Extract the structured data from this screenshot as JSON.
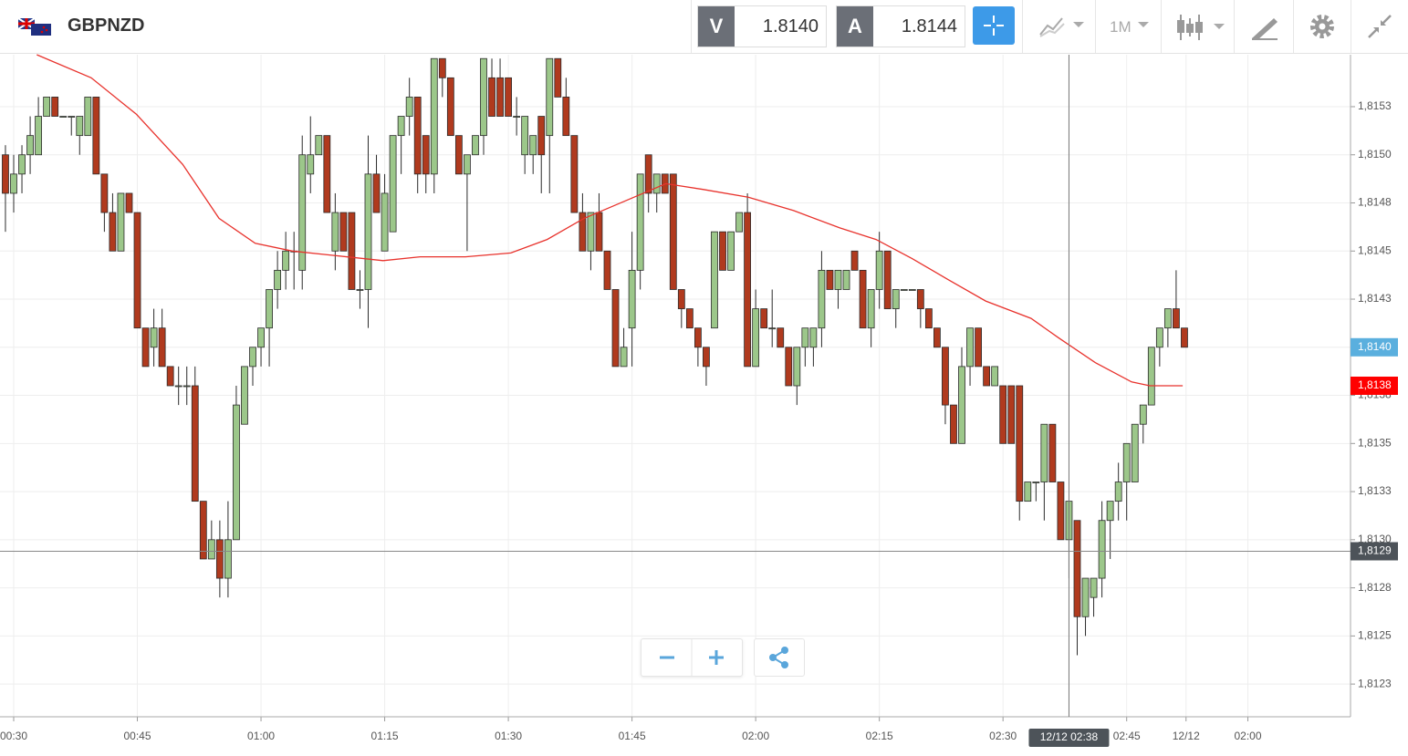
{
  "header": {
    "symbol": "GBPNZD",
    "sell_label": "V",
    "sell_price": "1.8140",
    "buy_label": "A",
    "buy_price": "1.8144",
    "timeframe": "1M"
  },
  "chart_data": {
    "type": "candlestick",
    "x": [
      -1,
      0,
      1,
      2,
      3,
      4,
      5,
      6,
      7,
      8,
      9,
      10,
      11,
      12,
      13,
      14,
      15,
      16,
      17,
      18,
      19,
      20,
      21,
      22,
      23,
      24,
      25,
      26,
      27,
      28,
      29,
      30,
      31,
      32,
      33,
      34,
      35,
      36,
      37,
      38,
      39,
      40,
      41,
      42,
      43,
      44,
      45,
      46,
      47,
      48,
      49,
      50,
      51,
      52,
      53,
      54,
      55,
      56,
      57,
      58,
      59,
      60,
      61,
      62,
      63,
      64,
      65,
      66,
      67,
      68,
      69,
      70,
      71,
      72,
      73,
      74,
      75,
      76,
      77,
      78,
      79,
      80,
      81,
      82,
      83,
      84,
      85,
      86,
      87,
      88,
      89,
      90,
      91,
      92,
      93,
      94,
      95,
      96,
      97,
      98,
      99,
      100,
      101,
      102,
      103,
      104,
      105,
      106,
      107,
      108,
      109,
      110,
      111,
      112,
      113,
      114,
      115,
      116,
      117,
      118,
      119,
      120,
      121,
      122,
      123,
      124,
      125,
      126,
      127,
      128,
      129,
      130,
      131,
      132,
      133,
      134,
      135,
      136,
      137,
      138,
      139,
      140,
      141,
      142
    ],
    "open": [
      1.815,
      1.8148,
      1.8149,
      1.815,
      1.815,
      1.8152,
      1.8153,
      1.8152,
      1.8152,
      1.8151,
      1.8151,
      1.8153,
      1.8149,
      1.8147,
      1.8145,
      1.8148,
      1.8147,
      1.8141,
      1.814,
      1.8141,
      1.8139,
      1.8138,
      1.8138,
      1.8138,
      1.8132,
      1.8129,
      1.813,
      1.8128,
      1.813,
      1.8136,
      1.8139,
      1.814,
      1.8141,
      1.8143,
      1.8144,
      1.8145,
      1.8144,
      1.8149,
      1.815,
      1.8151,
      1.8145,
      1.8147,
      1.8147,
      1.8143,
      1.8143,
      1.8149,
      1.8145,
      1.8146,
      1.8151,
      1.8152,
      1.8153,
      1.8151,
      1.8149,
      1.8155,
      1.8154,
      1.8151,
      1.8149,
      1.815,
      1.8151,
      1.8154,
      1.8154,
      1.8154,
      1.8152,
      1.815,
      1.815,
      1.8152,
      1.8151,
      1.8155,
      1.8153,
      1.8151,
      1.8147,
      1.8145,
      1.8147,
      1.8145,
      1.8143,
      1.8139,
      1.8141,
      1.8144,
      1.815,
      1.8148,
      1.8149,
      1.8149,
      1.8143,
      1.8142,
      1.8141,
      1.814,
      1.8141,
      1.8146,
      1.8144,
      1.8146,
      1.8147,
      1.8139,
      1.8142,
      1.8141,
      1.8141,
      1.814,
      1.8138,
      1.814,
      1.814,
      1.8141,
      1.8144,
      1.8143,
      1.8143,
      1.8145,
      1.8144,
      1.8141,
      1.8143,
      1.8145,
      1.8142,
      1.8143,
      1.8143,
      1.8143,
      1.8142,
      1.8141,
      1.814,
      1.8137,
      1.8135,
      1.8139,
      1.8141,
      1.8139,
      1.8138,
      1.8138,
      1.8138,
      1.8138,
      1.8132,
      1.8133,
      1.8133,
      1.8136,
      1.8133,
      1.813,
      1.8131,
      1.8126,
      1.8127,
      1.8128,
      1.8131,
      1.8132,
      1.8133,
      1.8133,
      1.8136,
      1.8137,
      1.814,
      1.8141,
      1.8142,
      1.8141
    ],
    "high": [
      1.81505,
      1.815,
      1.81505,
      1.8152,
      1.8153,
      1.8153,
      1.8153,
      1.8152,
      1.8152,
      1.8152,
      1.8153,
      1.8153,
      1.8149,
      1.8148,
      1.8148,
      1.8148,
      1.8147,
      1.8141,
      1.8142,
      1.8142,
      1.8139,
      1.8139,
      1.8139,
      1.8139,
      1.8132,
      1.8131,
      1.8131,
      1.8132,
      1.8138,
      1.8139,
      1.814,
      1.8141,
      1.8143,
      1.8145,
      1.8146,
      1.8146,
      1.8151,
      1.8152,
      1.8151,
      1.8151,
      1.8148,
      1.8147,
      1.8147,
      1.8144,
      1.8151,
      1.815,
      1.8149,
      1.8151,
      1.8152,
      1.8154,
      1.8153,
      1.8151,
      1.8155,
      1.8155,
      1.8154,
      1.8151,
      1.815,
      1.8151,
      1.8155,
      1.8155,
      1.8155,
      1.8154,
      1.8153,
      1.8152,
      1.8151,
      1.8152,
      1.8155,
      1.8155,
      1.8154,
      1.8151,
      1.8148,
      1.8147,
      1.8148,
      1.8145,
      1.8143,
      1.8141,
      1.8146,
      1.8149,
      1.815,
      1.8149,
      1.8149,
      1.8149,
      1.8143,
      1.8142,
      1.8141,
      1.814,
      1.8146,
      1.8146,
      1.8146,
      1.8147,
      1.8148,
      1.8143,
      1.8142,
      1.8143,
      1.8141,
      1.814,
      1.814,
      1.8141,
      1.8141,
      1.8145,
      1.8144,
      1.8144,
      1.8144,
      1.8145,
      1.8144,
      1.8143,
      1.8146,
      1.8145,
      1.8143,
      1.8143,
      1.8143,
      1.8143,
      1.8142,
      1.8141,
      1.814,
      1.8137,
      1.814,
      1.8141,
      1.8141,
      1.8139,
      1.8139,
      1.8138,
      1.8138,
      1.8138,
      1.8133,
      1.8133,
      1.8136,
      1.8136,
      1.8133,
      1.8132,
      1.8131,
      1.8128,
      1.8128,
      1.8132,
      1.8132,
      1.8134,
      1.8135,
      1.8136,
      1.8137,
      1.814,
      1.8141,
      1.8142,
      1.8144,
      1.8141
    ],
    "low": [
      1.8146,
      1.8147,
      1.8148,
      1.8149,
      1.815,
      1.8152,
      1.8152,
      1.8152,
      1.8151,
      1.815,
      1.8151,
      1.8149,
      1.8146,
      1.8145,
      1.8145,
      1.8147,
      1.8141,
      1.8139,
      1.8139,
      1.8139,
      1.8138,
      1.8137,
      1.8137,
      1.8132,
      1.8129,
      1.8129,
      1.8127,
      1.8127,
      1.813,
      1.8136,
      1.8138,
      1.8139,
      1.8139,
      1.8142,
      1.8143,
      1.8143,
      1.8143,
      1.8148,
      1.815,
      1.8147,
      1.8144,
      1.8145,
      1.8143,
      1.8142,
      1.8141,
      1.8147,
      1.8145,
      1.8146,
      1.8149,
      1.8151,
      1.8148,
      1.8148,
      1.8148,
      1.8153,
      1.8151,
      1.8149,
      1.8145,
      1.815,
      1.815,
      1.8152,
      1.8152,
      1.8152,
      1.8151,
      1.8149,
      1.8149,
      1.8148,
      1.8148,
      1.8153,
      1.8151,
      1.8147,
      1.8145,
      1.8144,
      1.8145,
      1.8143,
      1.8139,
      1.8139,
      1.8139,
      1.8143,
      1.8147,
      1.8147,
      1.8148,
      1.8143,
      1.8141,
      1.8141,
      1.8139,
      1.8138,
      1.8141,
      1.8144,
      1.8144,
      1.8146,
      1.8139,
      1.8139,
      1.8141,
      1.814,
      1.814,
      1.8138,
      1.8137,
      1.8139,
      1.8139,
      1.814,
      1.8143,
      1.8142,
      1.8143,
      1.8144,
      1.8141,
      1.814,
      1.8142,
      1.8142,
      1.8141,
      1.8143,
      1.8143,
      1.8141,
      1.8141,
      1.814,
      1.8136,
      1.8135,
      1.8135,
      1.8138,
      1.8139,
      1.8138,
      1.8138,
      1.8135,
      1.8135,
      1.8131,
      1.8132,
      1.8132,
      1.8131,
      1.8133,
      1.813,
      1.8128,
      1.8124,
      1.8125,
      1.8126,
      1.8127,
      1.8129,
      1.8131,
      1.8131,
      1.8133,
      1.8135,
      1.8137,
      1.8139,
      1.814,
      1.8141,
      1.814
    ],
    "close": [
      1.8148,
      1.8149,
      1.815,
      1.8151,
      1.8152,
      1.8153,
      1.8152,
      1.8152,
      1.8152,
      1.8152,
      1.8153,
      1.8149,
      1.8147,
      1.8145,
      1.8148,
      1.8147,
      1.8141,
      1.8139,
      1.8141,
      1.8139,
      1.8138,
      1.8138,
      1.8138,
      1.8132,
      1.8129,
      1.813,
      1.8128,
      1.813,
      1.8137,
      1.8139,
      1.814,
      1.8141,
      1.8143,
      1.8144,
      1.8145,
      1.8145,
      1.815,
      1.815,
      1.8151,
      1.8147,
      1.8147,
      1.8145,
      1.8143,
      1.8143,
      1.8149,
      1.8147,
      1.8148,
      1.8151,
      1.8152,
      1.8153,
      1.8149,
      1.8149,
      1.8155,
      1.8154,
      1.8151,
      1.8149,
      1.815,
      1.8151,
      1.8155,
      1.8152,
      1.8152,
      1.8152,
      1.8152,
      1.8152,
      1.8151,
      1.815,
      1.8155,
      1.8153,
      1.8151,
      1.8147,
      1.8145,
      1.8147,
      1.8145,
      1.8143,
      1.8139,
      1.814,
      1.8144,
      1.8149,
      1.8148,
      1.8149,
      1.8148,
      1.8143,
      1.8142,
      1.8141,
      1.814,
      1.8139,
      1.8146,
      1.8144,
      1.8146,
      1.8147,
      1.8139,
      1.8142,
      1.8141,
      1.8141,
      1.814,
      1.8138,
      1.814,
      1.8141,
      1.8141,
      1.8144,
      1.8143,
      1.8144,
      1.8144,
      1.8144,
      1.8141,
      1.8143,
      1.8145,
      1.8142,
      1.8143,
      1.8143,
      1.8143,
      1.8142,
      1.8141,
      1.814,
      1.8137,
      1.8135,
      1.8139,
      1.8141,
      1.8139,
      1.8138,
      1.8139,
      1.8135,
      1.8135,
      1.8132,
      1.8133,
      1.8133,
      1.8136,
      1.8133,
      1.813,
      1.8132,
      1.8126,
      1.8128,
      1.8128,
      1.8131,
      1.8132,
      1.8133,
      1.8135,
      1.8136,
      1.8137,
      1.814,
      1.8141,
      1.8142,
      1.8141,
      1.814
    ],
    "up_color": "#9cc78a",
    "down_color": "#b03a1e",
    "wick_color": "#2b2b2b",
    "overlays": [
      {
        "type": "line",
        "color": "#e8322c",
        "x": [
          2.8,
          9.4,
          14.9,
          20.5,
          24.9,
          29.3,
          33.8,
          38.2,
          44.8,
          49.3,
          54.8,
          60.3,
          64.7,
          69.2,
          74.7,
          79.1,
          83.6,
          89.1,
          94.6,
          100.2,
          104.6,
          109.0,
          113.4,
          117.9,
          123.4,
          126.7,
          131.2,
          135.6,
          137.8,
          141.8
        ],
        "values": [
          1.81552,
          1.8154,
          1.81521,
          1.81495,
          1.81467,
          1.81454,
          1.8145,
          1.81448,
          1.81445,
          1.81447,
          1.81447,
          1.81449,
          1.81456,
          1.81467,
          1.81477,
          1.81485,
          1.81482,
          1.81478,
          1.81471,
          1.81462,
          1.81456,
          1.81446,
          1.81435,
          1.81424,
          1.81415,
          1.81405,
          1.81392,
          1.81382,
          1.8138,
          1.8138
        ]
      }
    ],
    "xlim": [
      -1.66,
      162.15
    ],
    "ylim": [
      1.81208,
      1.81552
    ],
    "xticks": [
      {
        "value": 0,
        "label": "00:30"
      },
      {
        "value": 15,
        "label": "00:45"
      },
      {
        "value": 30,
        "label": "01:00"
      },
      {
        "value": 45,
        "label": "01:15"
      },
      {
        "value": 60,
        "label": "01:30"
      },
      {
        "value": 75,
        "label": "01:45"
      },
      {
        "value": 90,
        "label": "02:00"
      },
      {
        "value": 105,
        "label": "02:15"
      },
      {
        "value": 120,
        "label": "02:30"
      },
      {
        "value": 135,
        "label": "02:45"
      },
      {
        "value": 142.2,
        "label": "12/12"
      },
      {
        "value": 149.7,
        "label": "02:00"
      }
    ],
    "yticks": [
      {
        "value": 1.81525,
        "label": "1,8153"
      },
      {
        "value": 1.815,
        "label": "1,8150"
      },
      {
        "value": 1.81475,
        "label": "1,8148"
      },
      {
        "value": 1.8145,
        "label": "1,8145"
      },
      {
        "value": 1.81425,
        "label": "1,8143"
      },
      {
        "value": 1.814,
        "label": "1,8140"
      },
      {
        "value": 1.81375,
        "label": "1,8138"
      },
      {
        "value": 1.8135,
        "label": "1,8135"
      },
      {
        "value": 1.81325,
        "label": "1,8133"
      },
      {
        "value": 1.813,
        "label": "1,8130"
      },
      {
        "value": 1.81275,
        "label": "1,8128"
      },
      {
        "value": 1.8125,
        "label": "1,8125"
      },
      {
        "value": 1.81225,
        "label": "1,8123"
      }
    ],
    "grid": true,
    "price_tags": [
      {
        "value": 1.814,
        "label": "1,8140",
        "color": "#5aafde"
      },
      {
        "value": 1.8138,
        "label": "1,8138",
        "color": "#ff0000"
      }
    ],
    "crosshair": {
      "x": 128,
      "x_label": "12/12 02:38",
      "y": 1.81294,
      "y_label": "1,8129",
      "color": "#4d5359"
    }
  }
}
